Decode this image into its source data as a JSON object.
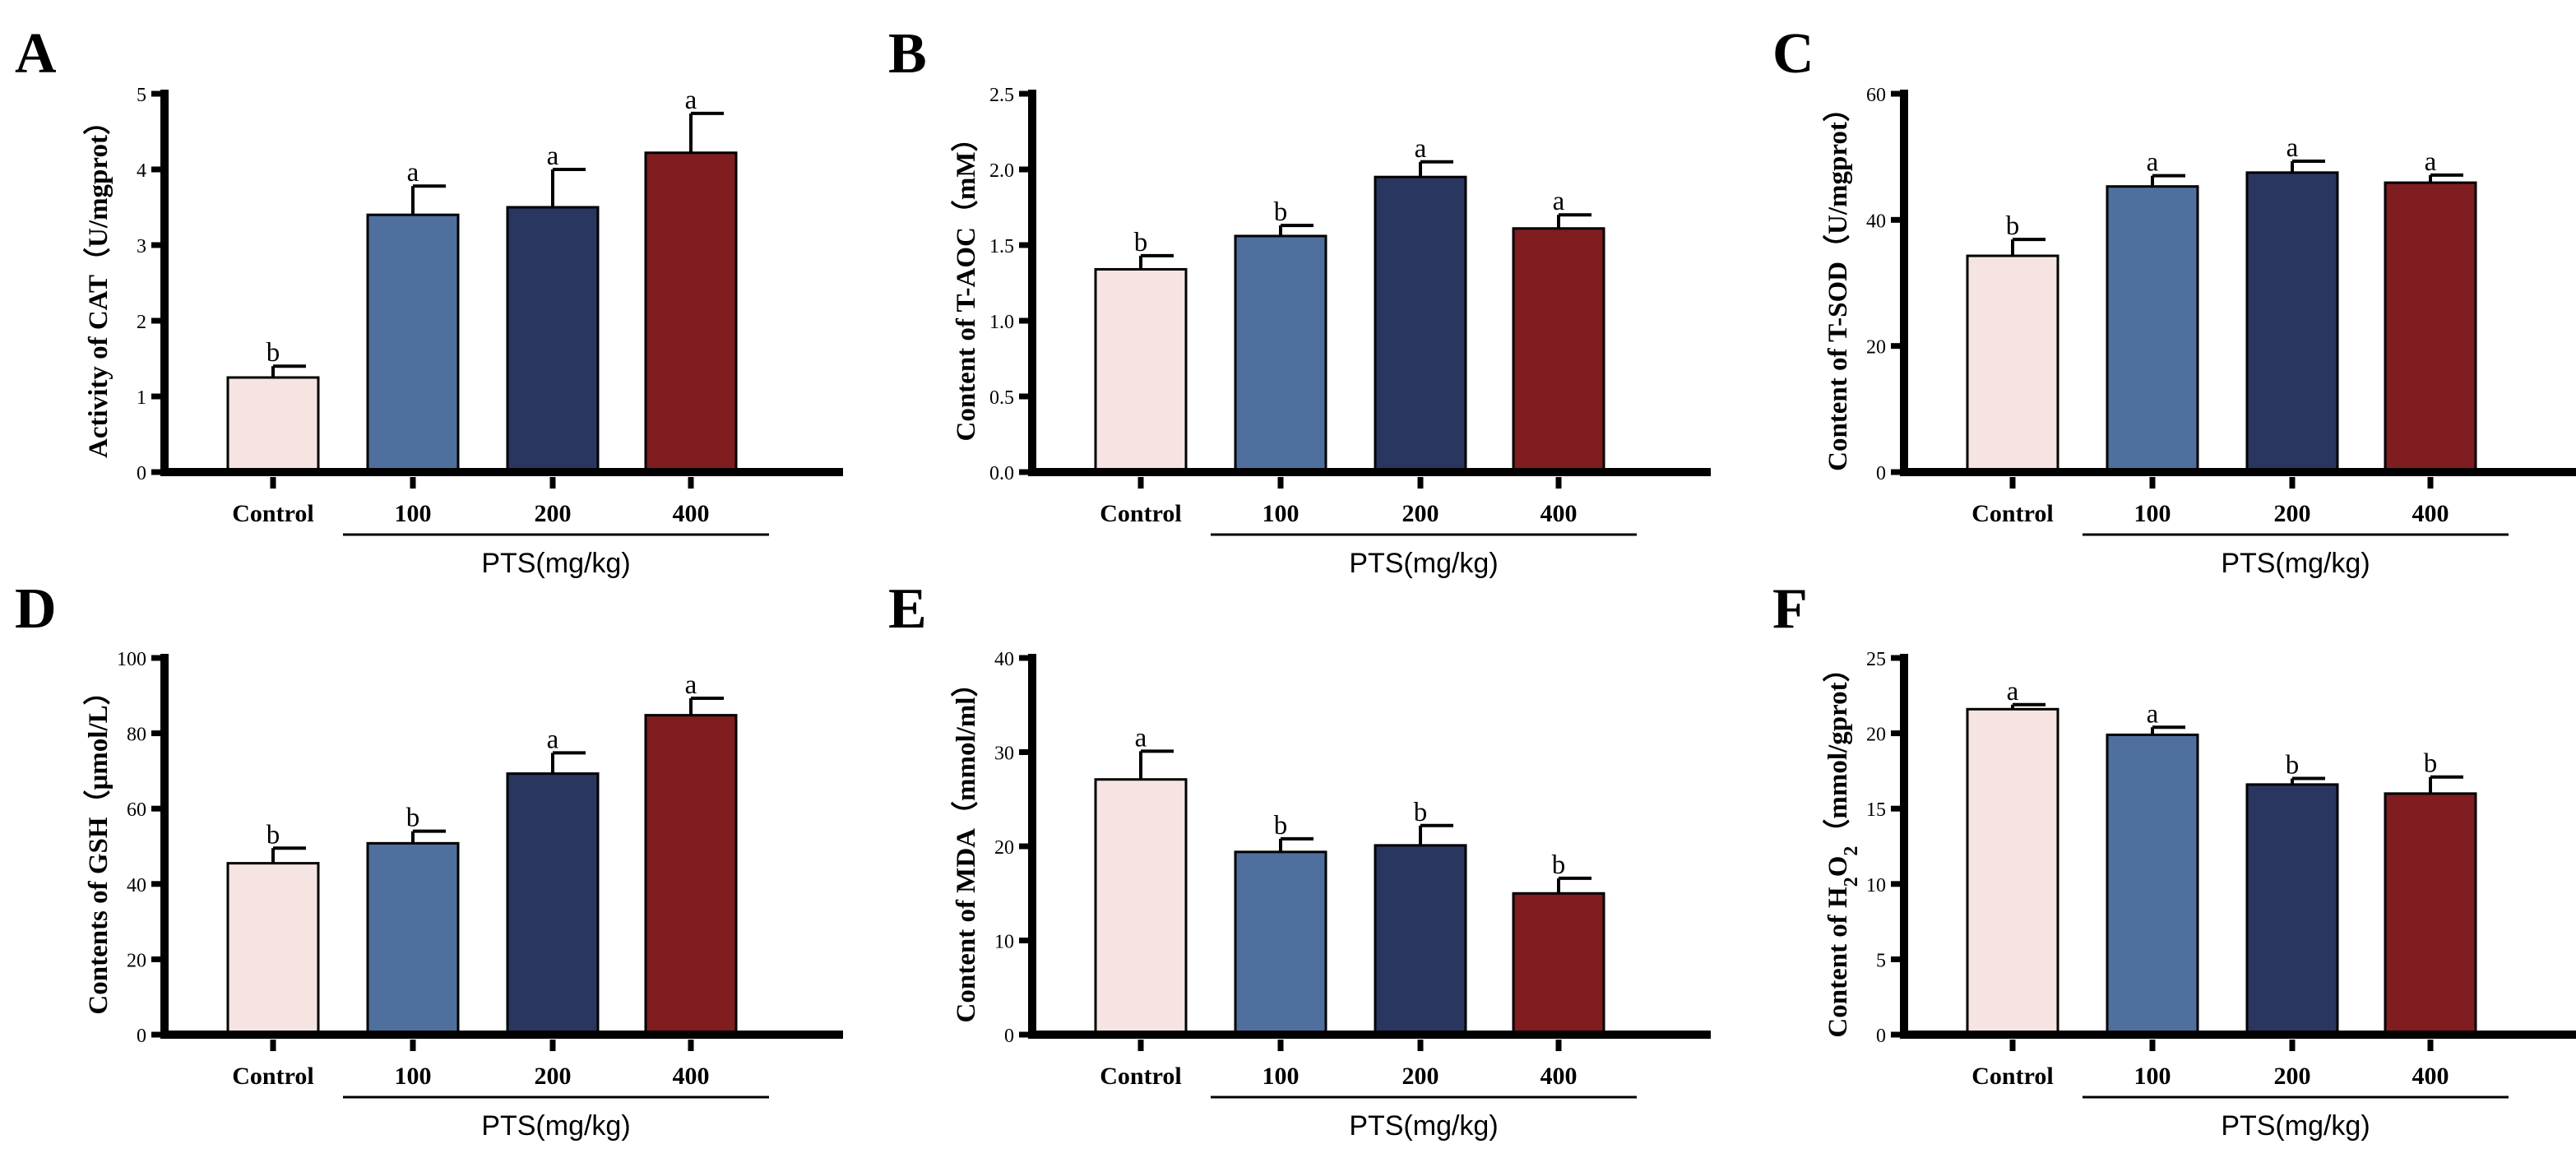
{
  "figure": {
    "group_label": "PTS(mg/kg)",
    "bar_colors": [
      "#F5E4E1",
      "#4F6F9E",
      "#283660",
      "#7F1D21"
    ]
  },
  "chart_data": [
    {
      "panel": "A",
      "type": "bar",
      "ylabel": "Activity of CAT（U/mgprot）",
      "categories": [
        "Control",
        "100",
        "200",
        "400"
      ],
      "values": [
        1.25,
        3.4,
        3.5,
        4.22
      ],
      "errors": [
        0.15,
        0.38,
        0.5,
        0.52
      ],
      "significance": [
        "b",
        "a",
        "a",
        "a"
      ],
      "ylim": [
        0,
        5
      ],
      "yticks": [
        "0",
        "1",
        "2",
        "3",
        "4",
        "5"
      ]
    },
    {
      "panel": "B",
      "type": "bar",
      "ylabel": "Content of T-AOC（mM）",
      "categories": [
        "Control",
        "100",
        "200",
        "400"
      ],
      "values": [
        1.34,
        1.56,
        1.95,
        1.61
      ],
      "errors": [
        0.09,
        0.07,
        0.1,
        0.09
      ],
      "significance": [
        "b",
        "b",
        "a",
        "a"
      ],
      "ylim": [
        0,
        2.5
      ],
      "yticks": [
        "0.0",
        "0.5",
        "1.0",
        "1.5",
        "2.0",
        "2.5"
      ]
    },
    {
      "panel": "C",
      "type": "bar",
      "ylabel": "Content of T-SOD（U/mgprot）",
      "categories": [
        "Control",
        "100",
        "200",
        "400"
      ],
      "values": [
        34.3,
        45.3,
        47.5,
        45.9
      ],
      "errors": [
        2.6,
        1.7,
        1.8,
        1.2
      ],
      "significance": [
        "b",
        "a",
        "a",
        "a"
      ],
      "ylim": [
        0,
        60
      ],
      "yticks": [
        "0",
        "20",
        "40",
        "60"
      ]
    },
    {
      "panel": "D",
      "type": "bar",
      "ylabel": "Contents of GSH（μmol/L）",
      "categories": [
        "Control",
        "100",
        "200",
        "400"
      ],
      "values": [
        45.5,
        50.8,
        69.3,
        84.8
      ],
      "errors": [
        4.0,
        3.2,
        5.5,
        4.5
      ],
      "significance": [
        "b",
        "b",
        "a",
        "a"
      ],
      "ylim": [
        0,
        100
      ],
      "yticks": [
        "0",
        "20",
        "40",
        "60",
        "80",
        "100"
      ]
    },
    {
      "panel": "E",
      "type": "bar",
      "ylabel": "Content of MDA（mmol/ml）",
      "categories": [
        "Control",
        "100",
        "200",
        "400"
      ],
      "values": [
        27.1,
        19.4,
        20.1,
        15.0
      ],
      "errors": [
        3.0,
        1.4,
        2.1,
        1.6
      ],
      "significance": [
        "a",
        "b",
        "b",
        "b"
      ],
      "ylim": [
        0,
        40
      ],
      "yticks": [
        "0",
        "10",
        "20",
        "30",
        "40"
      ]
    },
    {
      "panel": "F",
      "type": "bar",
      "ylabel_parts": [
        "Content of H",
        "2",
        "O",
        "2",
        "（mmol/gprot）"
      ],
      "categories": [
        "Control",
        "100",
        "200",
        "400"
      ],
      "values": [
        21.6,
        19.9,
        16.6,
        16.0
      ],
      "errors": [
        0.3,
        0.5,
        0.4,
        1.1
      ],
      "significance": [
        "a",
        "a",
        "b",
        "b"
      ],
      "ylim": [
        0,
        25
      ],
      "yticks": [
        "0",
        "5",
        "10",
        "15",
        "20",
        "25"
      ]
    }
  ]
}
